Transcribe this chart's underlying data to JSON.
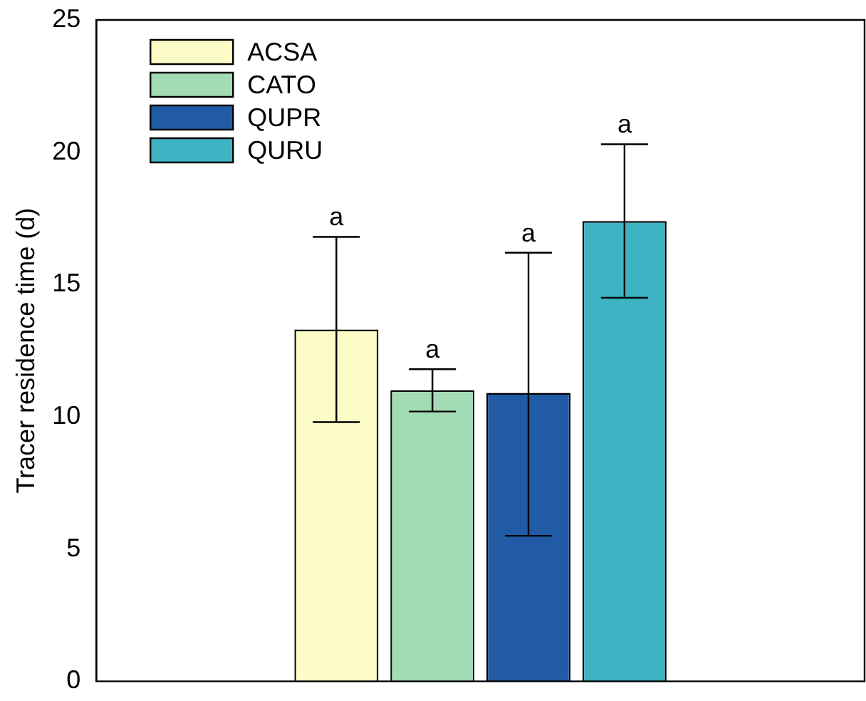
{
  "chart_data": {
    "type": "bar",
    "ylabel": "Tracer residence time (d)",
    "categories": [
      null
    ],
    "series": [
      {
        "name": "ACSA",
        "color": "#fcfcc6",
        "values": [
          13.3
        ],
        "errors": [
          [
            9.8,
            16.8
          ]
        ]
      },
      {
        "name": "CATO",
        "color": "#a3dbb4",
        "values": [
          11.0
        ],
        "errors": [
          [
            10.2,
            11.8
          ]
        ]
      },
      {
        "name": "QUPR",
        "color": "#215aa5",
        "values": [
          10.9
        ],
        "errors": [
          [
            5.5,
            16.2
          ]
        ]
      },
      {
        "name": "QURU",
        "color": "#3db3c4",
        "values": [
          17.4
        ],
        "errors": [
          [
            14.5,
            20.3
          ]
        ]
      }
    ],
    "ylim": [
      0,
      25
    ],
    "yticks": [
      0,
      5,
      10,
      15,
      20,
      25
    ],
    "grid": false,
    "legend": "top left",
    "tick_labels": "y",
    "annotations": [
      {
        "text": "a",
        "y": 16.8
      },
      {
        "text": "a",
        "y": 11.8
      },
      {
        "text": "a",
        "y": 16.2
      },
      {
        "text": "a",
        "y": 20.3
      }
    ]
  }
}
